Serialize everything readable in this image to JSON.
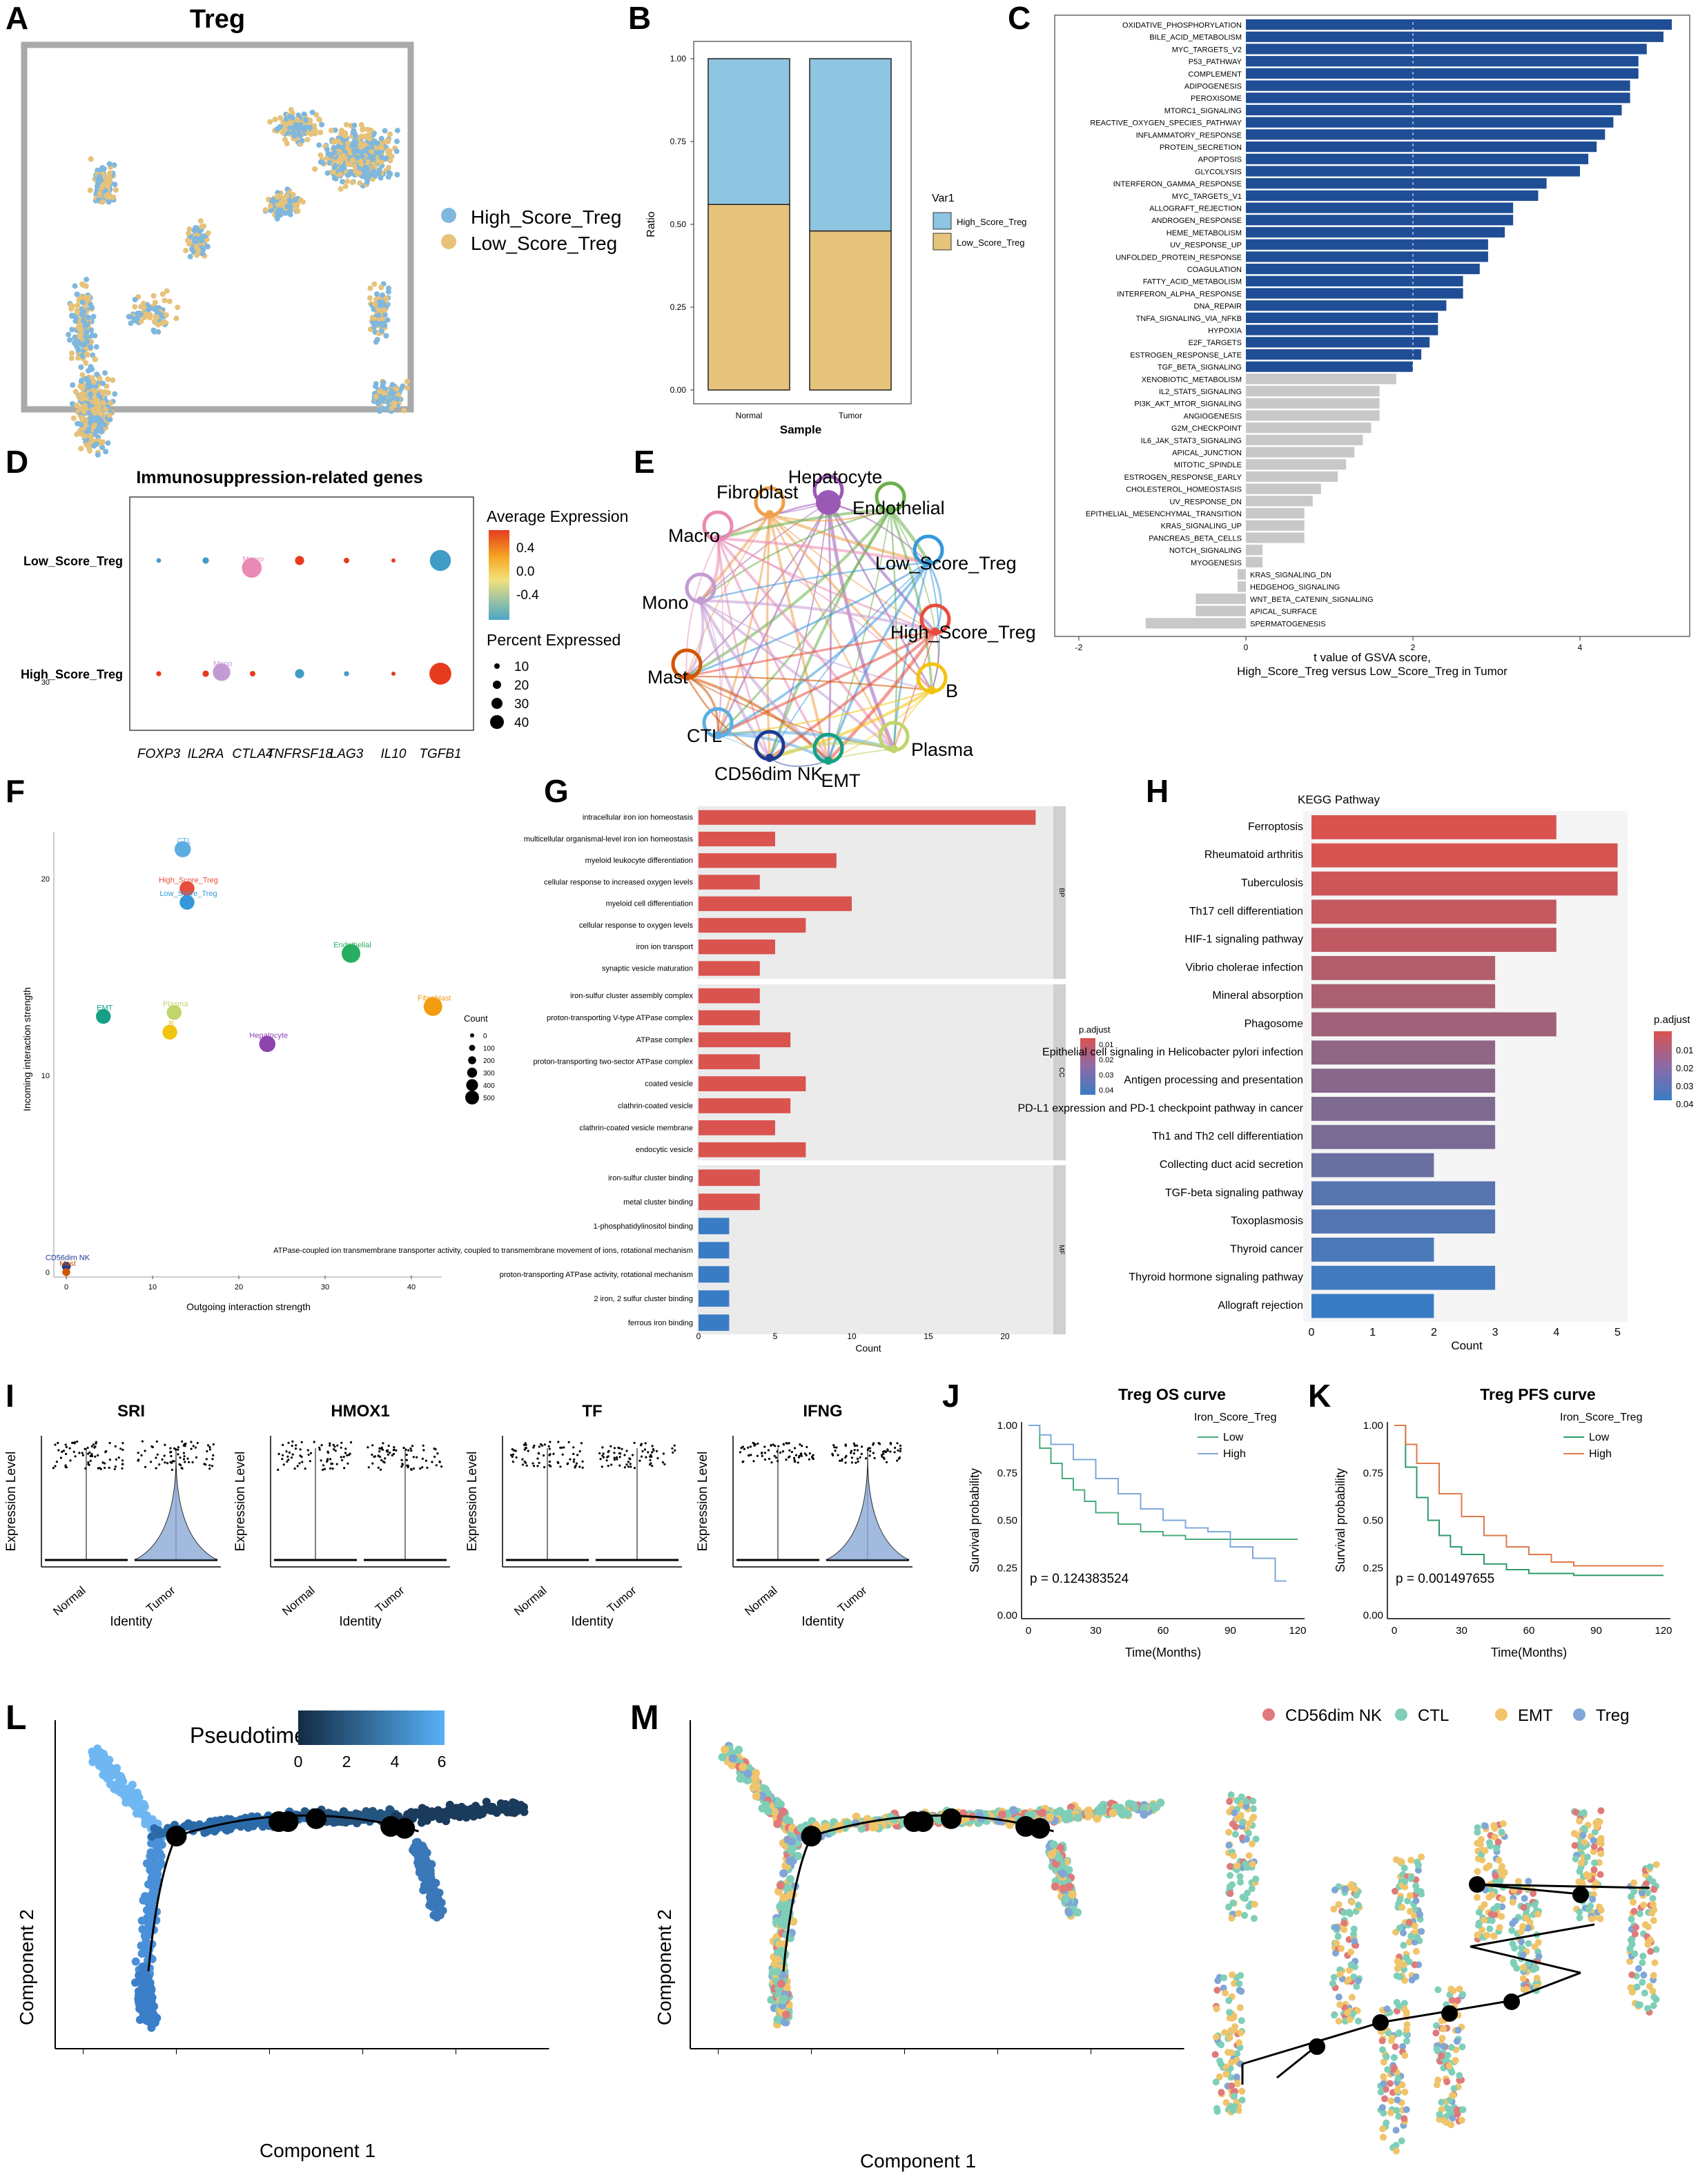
{
  "panels": {
    "A": {
      "letter": "A",
      "title": "Treg",
      "legend": [
        "High_Score_Treg",
        "Low_Score_Treg"
      ],
      "colors": [
        "#7fb7dd",
        "#e6c27a"
      ]
    },
    "B": {
      "letter": "B",
      "ylabel": "Ratio",
      "xlabel": "Sample",
      "legend_title": "Var1",
      "legend": [
        "High_Score_Treg",
        "Low_Score_Treg"
      ],
      "colors": [
        "#8ec5e0",
        "#e6c47b"
      ]
    },
    "C": {
      "letter": "C",
      "xlabel_1": "t value of GSVA score,",
      "xlabel_2": "High_Score_Treg versus Low_Score_Treg in Tumor",
      "colors": {
        "pos": "#1f4e96",
        "neutral": "#c8c8c8"
      }
    },
    "D": {
      "letter": "D",
      "title": "Immunosuppression-related genes",
      "color_legend_title": "Average Expression",
      "color_ticks": [
        "0.4",
        "0.0",
        "-0.4"
      ],
      "size_legend_title": "Percent Expressed",
      "size_ticks": [
        "10",
        "20",
        "30",
        "40"
      ]
    },
    "E": {
      "letter": "E",
      "nodes": [
        "Hepatocyte",
        "Fibroblast",
        "Endothelial",
        "Macro",
        "Low_Score_Treg",
        "Mono",
        "High_Score_Treg",
        "Mast",
        "B",
        "CTL",
        "Plasma",
        "CD56dim NK",
        "EMT"
      ]
    },
    "F": {
      "letter": "F",
      "xlabel": "Outgoing interaction strength",
      "ylabel": "Incoming interaction strength",
      "legend_title": "Count",
      "legend": [
        "0",
        "100",
        "200",
        "300",
        "400",
        "500"
      ]
    },
    "G": {
      "letter": "G",
      "xlabel": "Count",
      "legend_title": "p.adjust",
      "legend": [
        "0.01",
        "0.02",
        "0.03",
        "0.04"
      ],
      "facets": [
        "BP",
        "CC",
        "MF"
      ]
    },
    "H": {
      "letter": "H",
      "title": "KEGG Pathway",
      "xlabel": "Count",
      "legend_title": "p.adjust",
      "legend": [
        "0.01",
        "0.02",
        "0.03",
        "0.04"
      ]
    },
    "I": {
      "letter": "I",
      "ylabel": "Expression Level",
      "xlabel": "Identity",
      "groups": [
        "Normal",
        "Tumor"
      ],
      "genes": [
        "SRI",
        "HMOX1",
        "TF",
        "IFNG"
      ]
    },
    "J": {
      "letter": "J",
      "title": "Treg OS curve",
      "legend_title": "Iron_Score_Treg",
      "legend": [
        "Low",
        "High"
      ],
      "pvalue": "p = 0.124383524",
      "xlabel": "Time(Months)",
      "ylabel": "Survival probability"
    },
    "K": {
      "letter": "K",
      "title": "Treg PFS curve",
      "legend_title": "Iron_Score_Treg",
      "legend": [
        "Low",
        "High"
      ],
      "pvalue": "p = 0.001497655",
      "xlabel": "Time(Months)",
      "ylabel": "Survival probability"
    },
    "L": {
      "letter": "L",
      "legend_title": "Pseudotime",
      "legend": [
        "0",
        "2",
        "4",
        "6"
      ],
      "xlabel": "Component 1",
      "ylabel": "Component 2"
    },
    "M": {
      "letter": "M",
      "legend": [
        "CD56dim NK",
        "CTL",
        "EMT",
        "Treg"
      ],
      "colors": [
        "#e07a7a",
        "#7fcfb8",
        "#f0c46b",
        "#7fa6d6"
      ],
      "xlabel": "Component 1",
      "ylabel": "Component 2"
    }
  },
  "chart_data": [
    {
      "panel": "B",
      "type": "bar",
      "stacked": true,
      "categories": [
        "Normal",
        "Tumor"
      ],
      "ylim": [
        0,
        1
      ],
      "yticks": [
        "0.00",
        "0.25",
        "0.50",
        "0.75",
        "1.00"
      ],
      "series": [
        {
          "name": "Low_Score_Treg",
          "values": [
            0.56,
            0.48
          ]
        },
        {
          "name": "High_Score_Treg",
          "values": [
            0.44,
            0.52
          ]
        }
      ]
    },
    {
      "panel": "C",
      "type": "bar",
      "orientation": "horizontal",
      "xlim": [
        -2,
        5
      ],
      "xticks": [
        "-2",
        "0",
        "2",
        "4"
      ],
      "threshold": 2,
      "categories": [
        "OXIDATIVE_PHOSPHORYLATION",
        "BILE_ACID_METABOLISM",
        "MYC_TARGETS_V2",
        "P53_PATHWAY",
        "COMPLEMENT",
        "ADIPOGENESIS",
        "PEROXISOME",
        "MTORC1_SIGNALING",
        "REACTIVE_OXYGEN_SPECIES_PATHWAY",
        "INFLAMMATORY_RESPONSE",
        "PROTEIN_SECRETION",
        "APOPTOSIS",
        "GLYCOLYSIS",
        "INTERFERON_GAMMA_RESPONSE",
        "MYC_TARGETS_V1",
        "ALLOGRAFT_REJECTION",
        "ANDROGEN_RESPONSE",
        "HEME_METABOLISM",
        "UV_RESPONSE_UP",
        "UNFOLDED_PROTEIN_RESPONSE",
        "COAGULATION",
        "FATTY_ACID_METABOLISM",
        "INTERFERON_ALPHA_RESPONSE",
        "DNA_REPAIR",
        "TNFA_SIGNALING_VIA_NFKB",
        "HYPOXIA",
        "E2F_TARGETS",
        "ESTROGEN_RESPONSE_LATE",
        "TGF_BETA_SIGNALING",
        "XENOBIOTIC_METABOLISM",
        "IL2_STAT5_SIGNALING",
        "PI3K_AKT_MTOR_SIGNALING",
        "ANGIOGENESIS",
        "G2M_CHECKPOINT",
        "IL6_JAK_STAT3_SIGNALING",
        "APICAL_JUNCTION",
        "MITOTIC_SPINDLE",
        "ESTROGEN_RESPONSE_EARLY",
        "CHOLESTEROL_HOMEOSTASIS",
        "UV_RESPONSE_DN",
        "EPITHELIAL_MESENCHYMAL_TRANSITION",
        "KRAS_SIGNALING_UP",
        "PANCREAS_BETA_CELLS",
        "NOTCH_SIGNALING",
        "MYOGENESIS",
        "KRAS_SIGNALING_DN",
        "HEDGEHOG_SIGNALING",
        "WNT_BETA_CATENIN_SIGNALING",
        "APICAL_SURFACE",
        "SPERMATOGENESIS"
      ],
      "values": [
        5.1,
        5.0,
        4.8,
        4.7,
        4.7,
        4.6,
        4.6,
        4.5,
        4.4,
        4.3,
        4.2,
        4.1,
        4.0,
        3.6,
        3.5,
        3.2,
        3.2,
        3.1,
        2.9,
        2.9,
        2.8,
        2.6,
        2.6,
        2.4,
        2.3,
        2.3,
        2.2,
        2.1,
        2.0,
        1.8,
        1.6,
        1.6,
        1.6,
        1.5,
        1.4,
        1.3,
        1.2,
        1.1,
        0.9,
        0.8,
        0.7,
        0.7,
        0.7,
        0.2,
        0.2,
        -0.1,
        -0.1,
        -0.6,
        -0.6,
        -1.2
      ]
    },
    {
      "panel": "D",
      "type": "scatter",
      "encoding": "dot plot",
      "genes": [
        "FOXP3",
        "IL2RA",
        "CTLA4",
        "TNFRSF18",
        "LAG3",
        "IL10",
        "TGFB1"
      ],
      "groups": [
        "Low_Score_Treg",
        "High_Score_Treg"
      ],
      "avg_expression": [
        [
          -0.35,
          -0.3,
          -0.25,
          0.45,
          0.35,
          0.25,
          -0.45
        ],
        [
          0.45,
          0.5,
          0.45,
          -0.4,
          -0.35,
          0.2,
          0.55
        ]
      ],
      "pct_expressed": [
        [
          4,
          8,
          6,
          14,
          6,
          3,
          40
        ],
        [
          5,
          8,
          6,
          14,
          5,
          3,
          42
        ]
      ]
    },
    {
      "panel": "F",
      "type": "scatter",
      "xlim": [
        0,
        45
      ],
      "ylim": [
        0,
        38
      ],
      "xticks": [
        "0",
        "10",
        "20",
        "30",
        "40"
      ],
      "yticks": [
        "0",
        "10",
        "20",
        "30"
      ],
      "points": [
        {
          "label": "Macro",
          "x": 21.5,
          "y": 35.8,
          "count": 350
        },
        {
          "label": "Mono",
          "x": 18,
          "y": 30.5,
          "count": 250
        },
        {
          "label": "CTL",
          "x": 13.5,
          "y": 21.5,
          "count": 200
        },
        {
          "label": "High_Score_Treg",
          "x": 14,
          "y": 19.5,
          "count": 150
        },
        {
          "label": "Low_Score_Treg",
          "x": 14,
          "y": 18.8,
          "count": 150
        },
        {
          "label": "Endothelial",
          "x": 33,
          "y": 16.2,
          "count": 300
        },
        {
          "label": "Fibroblast",
          "x": 42.5,
          "y": 13.5,
          "count": 300
        },
        {
          "label": "EMT",
          "x": 4.3,
          "y": 13,
          "count": 150
        },
        {
          "label": "Plasma",
          "x": 12.5,
          "y": 13.2,
          "count": 150
        },
        {
          "label": "B",
          "x": 12,
          "y": 12.2,
          "count": 150
        },
        {
          "label": "Hepatocyte",
          "x": 23.3,
          "y": 11.6,
          "count": 200
        },
        {
          "label": "CD56dim NK",
          "x": 0,
          "y": 0.3,
          "count": 20
        },
        {
          "label": "Mast",
          "x": 0,
          "y": 0,
          "count": 10
        }
      ]
    },
    {
      "panel": "G",
      "type": "bar",
      "orientation": "horizontal",
      "xlim": [
        0,
        23
      ],
      "xticks": [
        "0",
        "5",
        "10",
        "15",
        "20"
      ],
      "categories": [
        "intracellular iron ion homeostasis",
        "multicellular organismal-level iron ion homeostasis",
        "myeloid leukocyte differentiation",
        "cellular response to increased oxygen levels",
        "myeloid cell differentiation",
        "cellular response to oxygen levels",
        "iron ion transport",
        "synaptic vesicle maturation",
        "iron-sulfur cluster assembly complex",
        "proton-transporting V-type ATPase complex",
        "ATPase complex",
        "proton-transporting two-sector ATPase complex",
        "coated vesicle",
        "clathrin-coated vesicle",
        "clathrin-coated vesicle membrane",
        "endocytic vesicle",
        "iron-sulfur cluster binding",
        "metal cluster binding",
        "1-phosphatidylinositol binding",
        "ATPase-coupled ion transmembrane transporter activity, coupled to transmembrane movement of ions, rotational mechanism",
        "proton-transporting ATPase activity, rotational mechanism",
        "2 iron, 2 sulfur cluster binding",
        "ferrous iron binding"
      ],
      "facet": [
        "BP",
        "BP",
        "BP",
        "BP",
        "BP",
        "BP",
        "BP",
        "BP",
        "CC",
        "CC",
        "CC",
        "CC",
        "CC",
        "CC",
        "CC",
        "CC",
        "MF",
        "MF",
        "MF",
        "MF",
        "MF",
        "MF",
        "MF"
      ],
      "values": [
        22,
        5,
        9,
        4,
        10,
        7,
        5,
        4,
        4,
        4,
        6,
        4,
        7,
        6,
        5,
        7,
        4,
        4,
        2,
        2,
        2,
        2,
        2
      ],
      "p_adjust": [
        0.01,
        0.01,
        0.01,
        0.01,
        0.01,
        0.01,
        0.01,
        0.01,
        0.01,
        0.01,
        0.01,
        0.01,
        0.01,
        0.01,
        0.01,
        0.01,
        0.01,
        0.01,
        0.04,
        0.04,
        0.04,
        0.04,
        0.04
      ]
    },
    {
      "panel": "H",
      "type": "bar",
      "orientation": "horizontal",
      "xlim": [
        0,
        5
      ],
      "xticks": [
        "0",
        "1",
        "2",
        "3",
        "4",
        "5"
      ],
      "categories": [
        "Ferroptosis",
        "Rheumatoid arthritis",
        "Tuberculosis",
        "Th17 cell differentiation",
        "HIF-1 signaling pathway",
        "Vibrio cholerae infection",
        "Mineral absorption",
        "Phagosome",
        "Epithelial cell signaling in Helicobacter pylori infection",
        "Antigen processing and presentation",
        "PD-L1 expression and PD-1 checkpoint pathway in cancer",
        "Th1 and Th2 cell differentiation",
        "Collecting duct acid secretion",
        "TGF-beta signaling pathway",
        "Toxoplasmosis",
        "Thyroid cancer",
        "Thyroid hormone signaling pathway",
        "Allograft rejection"
      ],
      "values": [
        4,
        5,
        5,
        4,
        4,
        3,
        3,
        4,
        3,
        3,
        3,
        3,
        2,
        3,
        3,
        2,
        3,
        2
      ],
      "p_adjust": [
        0.005,
        0.006,
        0.008,
        0.01,
        0.011,
        0.014,
        0.016,
        0.018,
        0.022,
        0.024,
        0.026,
        0.027,
        0.031,
        0.035,
        0.036,
        0.038,
        0.04,
        0.042
      ]
    },
    {
      "panel": "J",
      "type": "line",
      "xlim": [
        0,
        120
      ],
      "ylim": [
        0,
        1
      ],
      "xticks": [
        "0",
        "30",
        "60",
        "90",
        "120"
      ],
      "yticks": [
        "0.00",
        "0.25",
        "0.50",
        "0.75",
        "1.00"
      ],
      "series": [
        {
          "name": "Low",
          "x": [
            0,
            5,
            10,
            15,
            20,
            25,
            30,
            40,
            50,
            60,
            70,
            80,
            120
          ],
          "y": [
            1,
            0.88,
            0.8,
            0.72,
            0.66,
            0.6,
            0.54,
            0.48,
            0.44,
            0.42,
            0.4,
            0.4,
            0.4
          ]
        },
        {
          "name": "High",
          "x": [
            0,
            5,
            10,
            20,
            30,
            40,
            50,
            60,
            70,
            80,
            90,
            100,
            110,
            115
          ],
          "y": [
            1,
            0.95,
            0.9,
            0.82,
            0.72,
            0.64,
            0.56,
            0.5,
            0.46,
            0.44,
            0.36,
            0.3,
            0.18,
            0.18
          ]
        }
      ]
    },
    {
      "panel": "K",
      "type": "line",
      "xlim": [
        0,
        120
      ],
      "ylim": [
        0,
        1
      ],
      "xticks": [
        "0",
        "30",
        "60",
        "90",
        "120"
      ],
      "yticks": [
        "0.00",
        "0.25",
        "0.50",
        "0.75",
        "1.00"
      ],
      "series": [
        {
          "name": "Low",
          "x": [
            0,
            5,
            10,
            15,
            20,
            25,
            30,
            40,
            50,
            60,
            80,
            120
          ],
          "y": [
            1,
            0.78,
            0.62,
            0.5,
            0.42,
            0.36,
            0.32,
            0.27,
            0.24,
            0.22,
            0.21,
            0.21
          ]
        },
        {
          "name": "High",
          "x": [
            0,
            5,
            10,
            20,
            30,
            40,
            50,
            60,
            70,
            80,
            120
          ],
          "y": [
            1,
            0.9,
            0.8,
            0.64,
            0.52,
            0.42,
            0.36,
            0.32,
            0.28,
            0.26,
            0.26
          ]
        }
      ]
    }
  ]
}
